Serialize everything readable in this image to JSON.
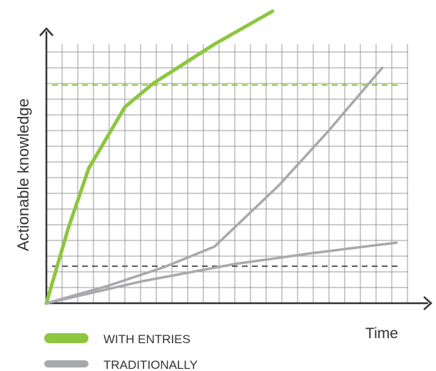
{
  "chart_data": {
    "type": "line",
    "y_label": "Actionable knowledge",
    "x_label": "Time",
    "xlim": [
      0,
      24.5
    ],
    "ylim": [
      0,
      17.5
    ],
    "grid": true,
    "series": [
      {
        "name": "WITH ENTRIES",
        "color": "#8dc63f",
        "lines": [
          {
            "x": [
              0,
              1.4,
              2.7,
              5,
              6.8,
              10.7,
              14.4
            ],
            "y": [
              0,
              4.8,
              8.6,
              12.5,
              14,
              16.5,
              18.6
            ]
          }
        ]
      },
      {
        "name": "TRADITIONALLY",
        "color": "#a7a9ac",
        "lines": [
          {
            "x": [
              0,
              3.9,
              7.5,
              10.7,
              14.8,
              17.9,
              21.4
            ],
            "y": [
              0,
              1.1,
              2.3,
              3.6,
              7.5,
              10.9,
              15
            ]
          },
          {
            "x": [
              0,
              6.1,
              12,
              17,
              22.3
            ],
            "y": [
              0,
              1.4,
              2.5,
              3.2,
              3.86
            ]
          }
        ]
      }
    ],
    "reference_lines": [
      {
        "y": 13.9,
        "color": "#8dc63f"
      },
      {
        "y": 2.36,
        "color": "#555555"
      }
    ]
  }
}
